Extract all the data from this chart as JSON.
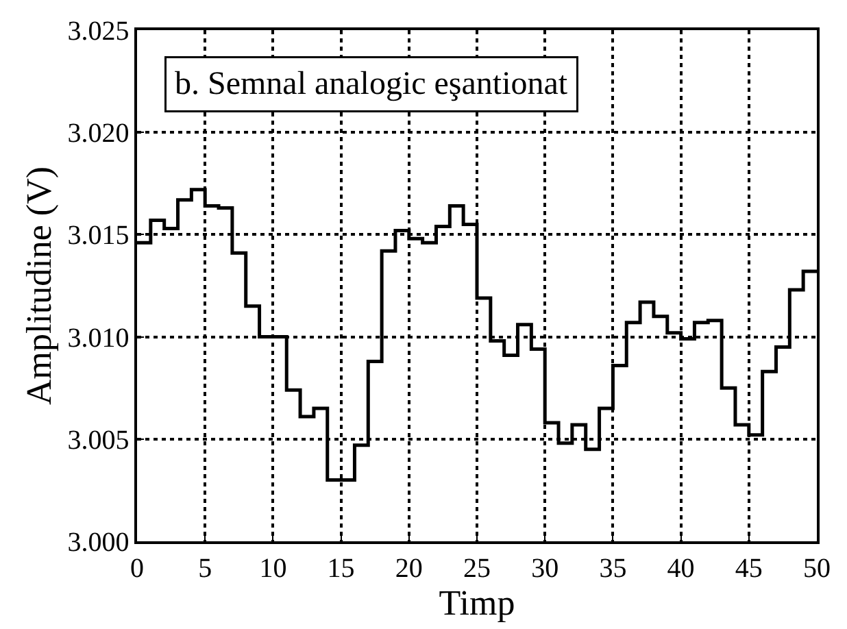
{
  "chart_data": {
    "type": "step",
    "title": "b. Semnal analogic eşantionat",
    "xlabel": "Timp",
    "ylabel": "Amplitudine (V)",
    "x": [
      0,
      1,
      2,
      3,
      4,
      5,
      6,
      7,
      8,
      9,
      10,
      11,
      12,
      13,
      14,
      15,
      16,
      17,
      18,
      19,
      20,
      21,
      22,
      23,
      24,
      25,
      26,
      27,
      28,
      29,
      30,
      31,
      32,
      33,
      34,
      35,
      36,
      37,
      38,
      39,
      40,
      41,
      42,
      43,
      44,
      45,
      46,
      47,
      48,
      49,
      50
    ],
    "series": [
      {
        "color": "#000000",
        "values": [
          3.0146,
          3.0157,
          3.0153,
          3.0167,
          3.0172,
          3.0164,
          3.0163,
          3.0141,
          3.0115,
          3.01,
          3.01,
          3.0074,
          3.0061,
          3.0065,
          3.003,
          3.003,
          3.0047,
          3.0088,
          3.0142,
          3.0152,
          3.0148,
          3.0146,
          3.0154,
          3.0164,
          3.0155,
          3.0119,
          3.0098,
          3.0091,
          3.0106,
          3.0094,
          3.0058,
          3.0048,
          3.0057,
          3.0045,
          3.0065,
          3.0086,
          3.0107,
          3.0117,
          3.011,
          3.0102,
          3.0099,
          3.0107,
          3.0108,
          3.0075,
          3.0057,
          3.0052,
          3.0083,
          3.0095,
          3.0123,
          3.0132,
          3.0132
        ]
      }
    ],
    "xlim": [
      0,
      50
    ],
    "xticks": [
      0,
      5,
      10,
      15,
      20,
      25,
      30,
      35,
      40,
      45,
      50
    ],
    "ylim": [
      3.0,
      3.025
    ],
    "yticks": [
      {
        "value": 3.0,
        "label": "3.000"
      },
      {
        "value": 3.005,
        "label": "3.005"
      },
      {
        "value": 3.01,
        "label": "3.010"
      },
      {
        "value": 3.015,
        "label": "3.015"
      },
      {
        "value": 3.02,
        "label": "3.020"
      },
      {
        "value": 3.025,
        "label": "3.025"
      }
    ],
    "grid": true,
    "line_style": "solid",
    "marker": "none"
  }
}
